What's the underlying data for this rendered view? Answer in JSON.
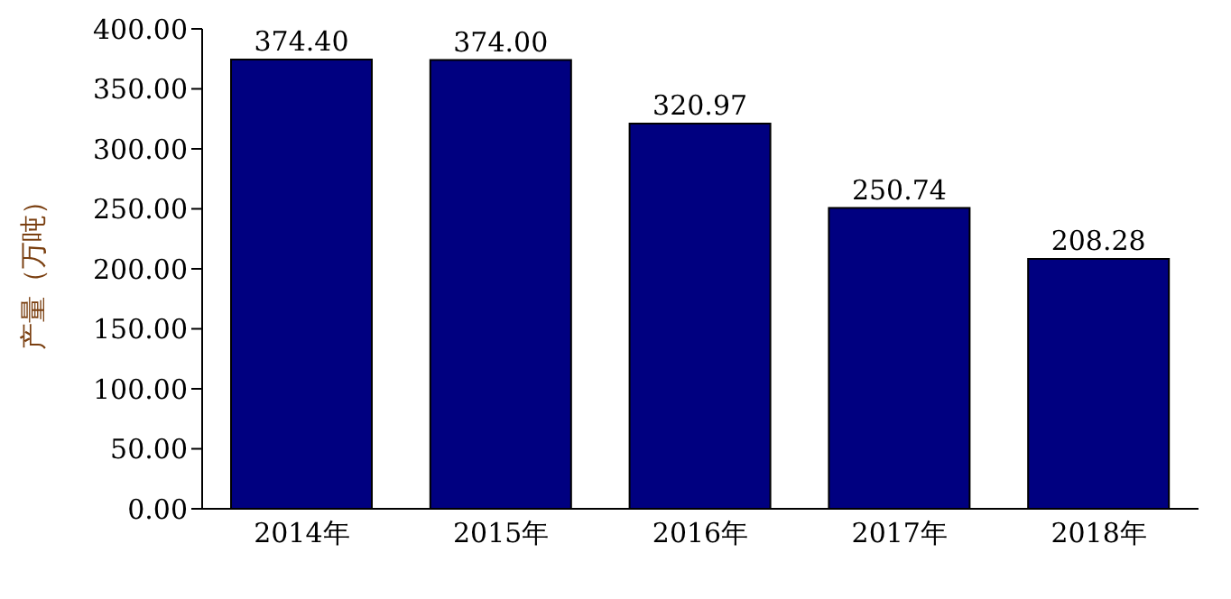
{
  "chart_data": {
    "type": "bar",
    "ylabel": "产量（万吨）",
    "categories": [
      "2014年",
      "2015年",
      "2016年",
      "2017年",
      "2018年"
    ],
    "values": [
      374.4,
      374.0,
      320.97,
      250.74,
      208.28
    ],
    "value_labels": [
      "374.40",
      "374.00",
      "320.97",
      "250.74",
      "208.28"
    ],
    "color": "#000080",
    "ylim": [
      0,
      400
    ],
    "yticks": [
      {
        "value": 0,
        "label": "0.00"
      },
      {
        "value": 50,
        "label": "50.00"
      },
      {
        "value": 100,
        "label": "100.00"
      },
      {
        "value": 150,
        "label": "150.00"
      },
      {
        "value": 200,
        "label": "200.00"
      },
      {
        "value": 250,
        "label": "250.00"
      },
      {
        "value": 300,
        "label": "300.00"
      },
      {
        "value": 350,
        "label": "350.00"
      },
      {
        "value": 400,
        "label": "400.00"
      }
    ],
    "grid": false,
    "legend": false
  }
}
